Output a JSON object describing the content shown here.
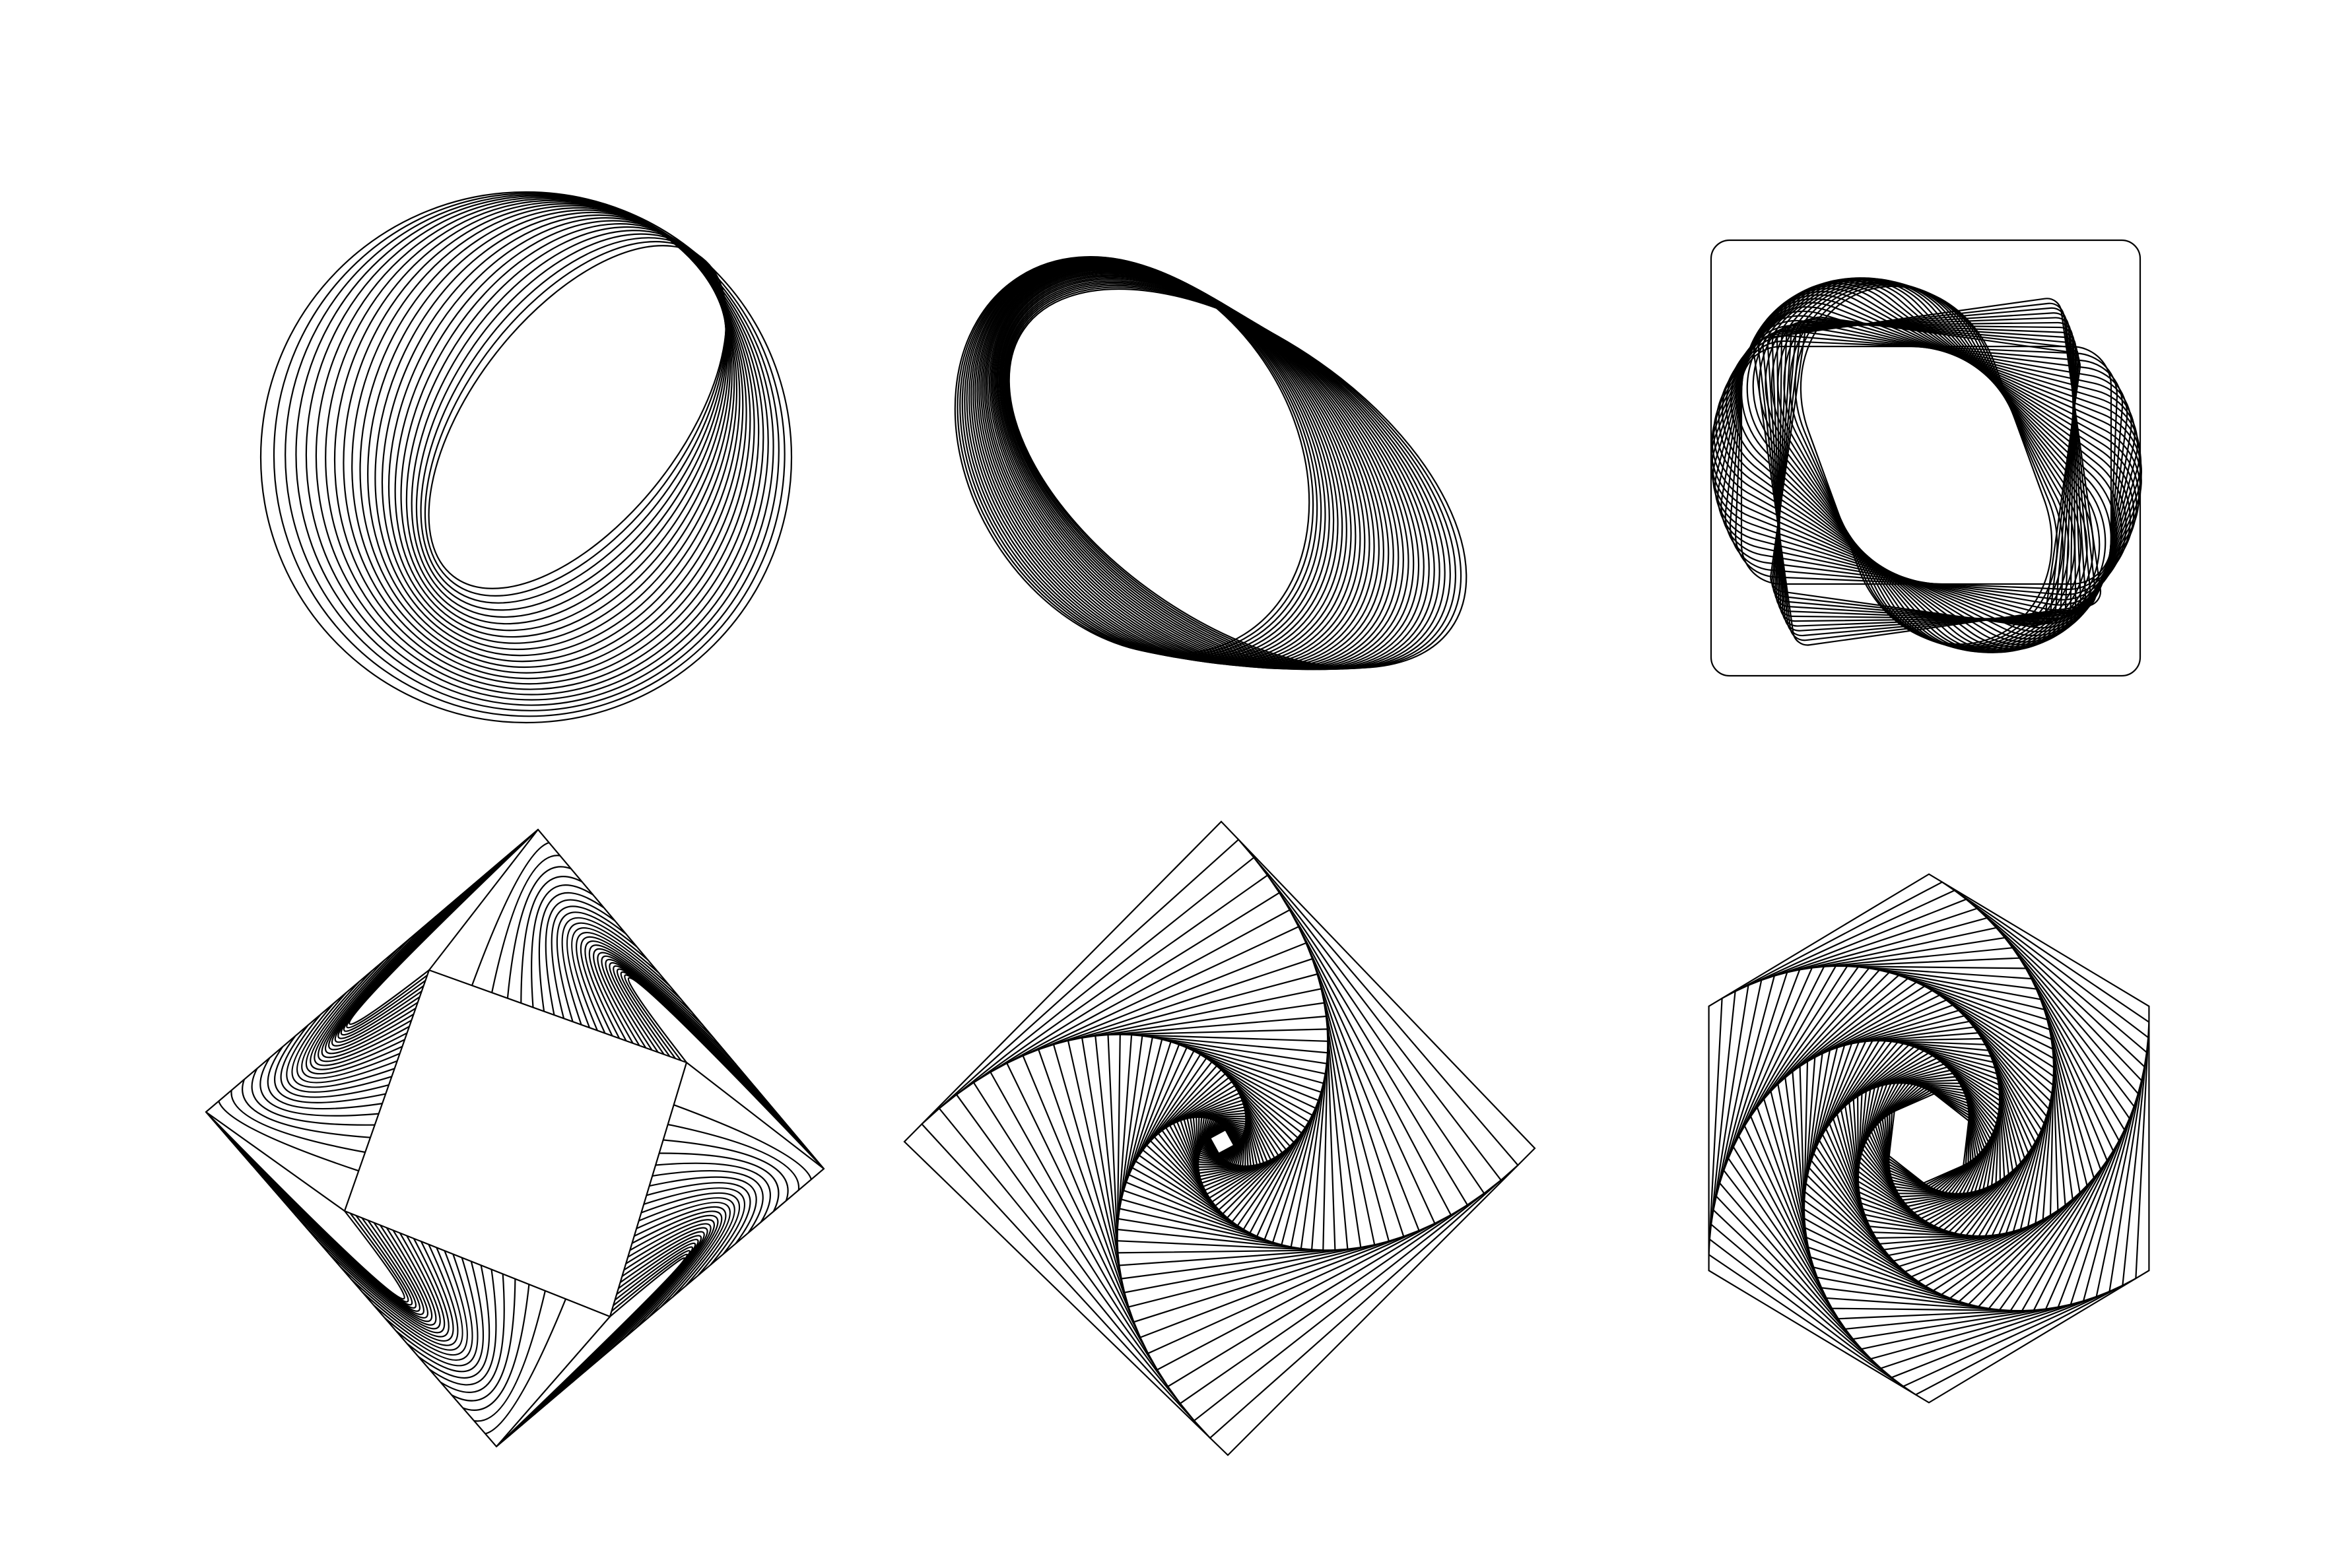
{
  "colors": {
    "background": "#ffffff",
    "stroke": "#000000"
  },
  "figures": [
    {
      "name": "nested-circle-ellipse-figure",
      "icon": "nested-ellipses-icon"
    },
    {
      "name": "woven-ellipse-ring-figure",
      "icon": "rotated-ellipses-icon"
    },
    {
      "name": "rounded-square-ring-figure",
      "icon": "rotated-rounded-squares-icon"
    },
    {
      "name": "square-twist-frame-figure",
      "icon": "twisted-square-icon"
    },
    {
      "name": "square-spiral-figure",
      "icon": "square-spiral-icon"
    },
    {
      "name": "hexagon-spiral-figure",
      "icon": "hexagon-spiral-icon"
    }
  ]
}
